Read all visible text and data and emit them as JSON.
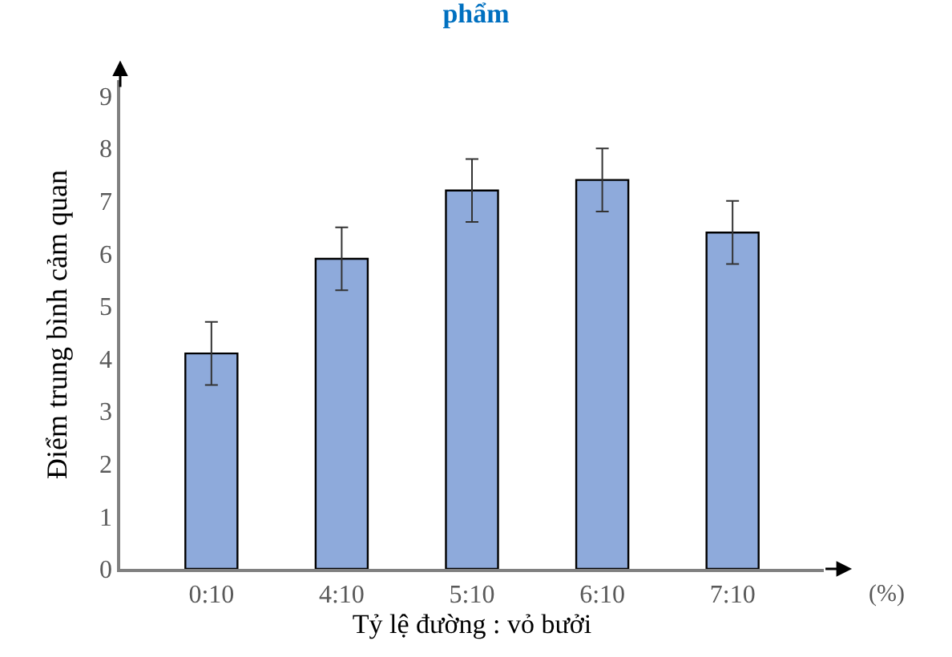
{
  "chart_data": {
    "type": "bar",
    "title": "phẩm",
    "xlabel": "Tỷ lệ đường : vỏ bưởi",
    "ylabel": "Điểm trung bình cảm quan",
    "categories": [
      "0:10",
      "4:10",
      "5:10",
      "6:10",
      "7:10"
    ],
    "values": [
      4.1,
      5.9,
      7.2,
      7.4,
      6.4
    ],
    "errors": [
      0.6,
      0.6,
      0.6,
      0.6,
      0.6
    ],
    "color": "#8eaadb",
    "ylim": [
      0,
      9.3
    ],
    "yticks": [
      0,
      1,
      2,
      3,
      4,
      5,
      6,
      7,
      8,
      9
    ],
    "legend": false,
    "annotations": [
      "(%)"
    ]
  }
}
